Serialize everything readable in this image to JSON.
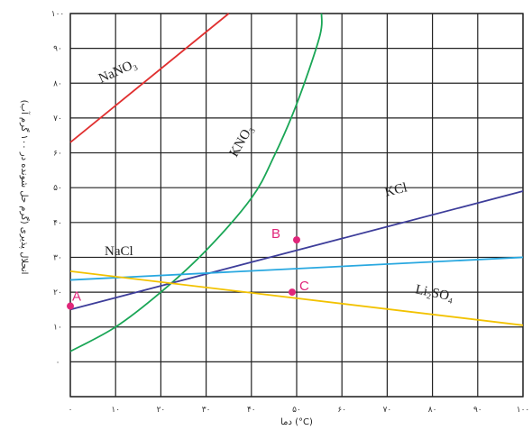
{
  "chart_data": {
    "type": "line",
    "xlabel": "دما (°C)",
    "ylabel": "انحلال پذیری (گرم حل شونده در ۱۰۰ گرم آب)",
    "xlim": [
      0,
      100
    ],
    "ylim": [
      -10,
      100
    ],
    "x_ticks": [
      0,
      10,
      20,
      30,
      40,
      50,
      60,
      70,
      80,
      90,
      100
    ],
    "x_tick_labels": [
      "۰",
      "۱۰",
      "۲۰",
      "۳۰",
      "۴۰",
      "۵۰",
      "۶۰",
      "۷۰",
      "۸۰",
      "۹۰",
      "۱۰۰"
    ],
    "y_ticks": [
      0,
      10,
      20,
      30,
      40,
      50,
      60,
      70,
      80,
      90,
      100
    ],
    "y_tick_labels": [
      "۰",
      "۱۰",
      "۲۰",
      "۳۰",
      "۴۰",
      "۵۰",
      "۶۰",
      "۷۰",
      "۸۰",
      "۹۰",
      "۱۰۰"
    ],
    "grid": true,
    "series": [
      {
        "name": "NaNO₃",
        "label_text": "NaNO₃",
        "color": "#e03030",
        "x": [
          0,
          35
        ],
        "y": [
          63,
          100
        ]
      },
      {
        "name": "KNO₃",
        "label_text": "KNO₃",
        "color": "#1aa656",
        "x": [
          0,
          10,
          20,
          30,
          40,
          45,
          50,
          55,
          55.5
        ],
        "y": [
          3,
          10,
          20,
          32,
          47,
          59,
          74,
          93,
          100
        ]
      },
      {
        "name": "KCl",
        "label_text": "KCl",
        "color": "#3d3d9a",
        "x": [
          0,
          100
        ],
        "y": [
          15,
          49
        ]
      },
      {
        "name": "NaCl",
        "label_text": "NaCl",
        "color": "#29a8e0",
        "x": [
          0,
          100
        ],
        "y": [
          23.5,
          30
        ]
      },
      {
        "name": "Li₂SO₄",
        "label_text": "Li₂SO₄",
        "color": "#f2c200",
        "x": [
          0,
          100
        ],
        "y": [
          26,
          10.5
        ]
      }
    ],
    "points": [
      {
        "label": "A",
        "x": 0,
        "y": 16
      },
      {
        "label": "B",
        "x": 50,
        "y": 35
      },
      {
        "label": "C",
        "x": 49,
        "y": 20
      }
    ],
    "point_color": "#e0267a"
  }
}
